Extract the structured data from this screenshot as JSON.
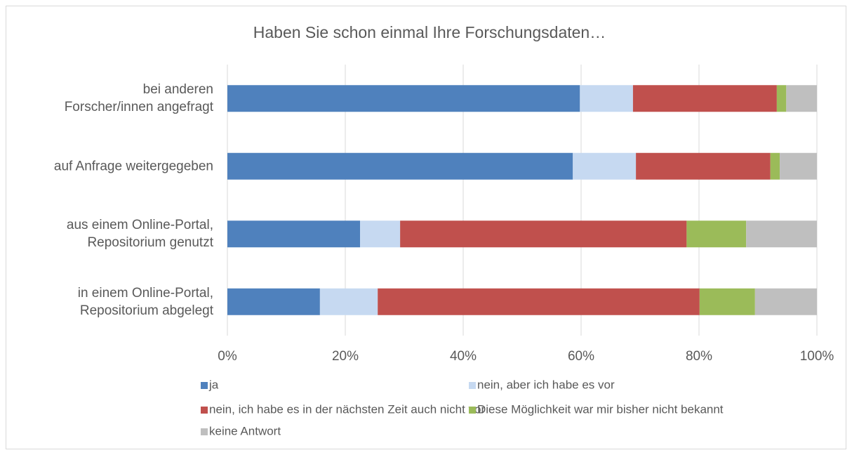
{
  "chart_data": {
    "type": "stacked_barh",
    "title": "Haben Sie schon einmal Ihre Forschungsdaten…",
    "categories": [
      "bei anderen\nForscher/innen angefragt",
      "auf Anfrage weitergegeben",
      "aus einem Online-Portal,\nRepositorium genutzt",
      "in einem Online-Portal,\nRepositorium abgelegt"
    ],
    "series": [
      {
        "name": "ja",
        "color": "#4f81bd",
        "values": [
          59.8,
          58.6,
          22.5,
          15.7
        ]
      },
      {
        "name": "nein, aber ich habe es vor",
        "color": "#c6d9f1",
        "values": [
          9,
          10.7,
          6.8,
          9.8
        ]
      },
      {
        "name": "nein, ich habe es in der nächsten Zeit auch nicht vor",
        "color": "#c0504d",
        "values": [
          24.4,
          22.8,
          48.6,
          54.6
        ]
      },
      {
        "name": "Diese Möglichkeit war mir bisher nicht bekannt",
        "color": "#9bbb59",
        "values": [
          1.6,
          1.6,
          10.1,
          9.4
        ]
      },
      {
        "name": "keine Antwort",
        "color": "#bfbfbf",
        "values": [
          5.2,
          6.3,
          12,
          10.5
        ]
      }
    ],
    "xlim": [
      0,
      100
    ],
    "xticks": [
      {
        "value": 0,
        "label": "0%"
      },
      {
        "value": 20,
        "label": "20%"
      },
      {
        "value": 40,
        "label": "40%"
      },
      {
        "value": 60,
        "label": "60%"
      },
      {
        "value": 80,
        "label": "80%"
      },
      {
        "value": 100,
        "label": "100%"
      }
    ],
    "grid": true,
    "legend": "bottom"
  }
}
